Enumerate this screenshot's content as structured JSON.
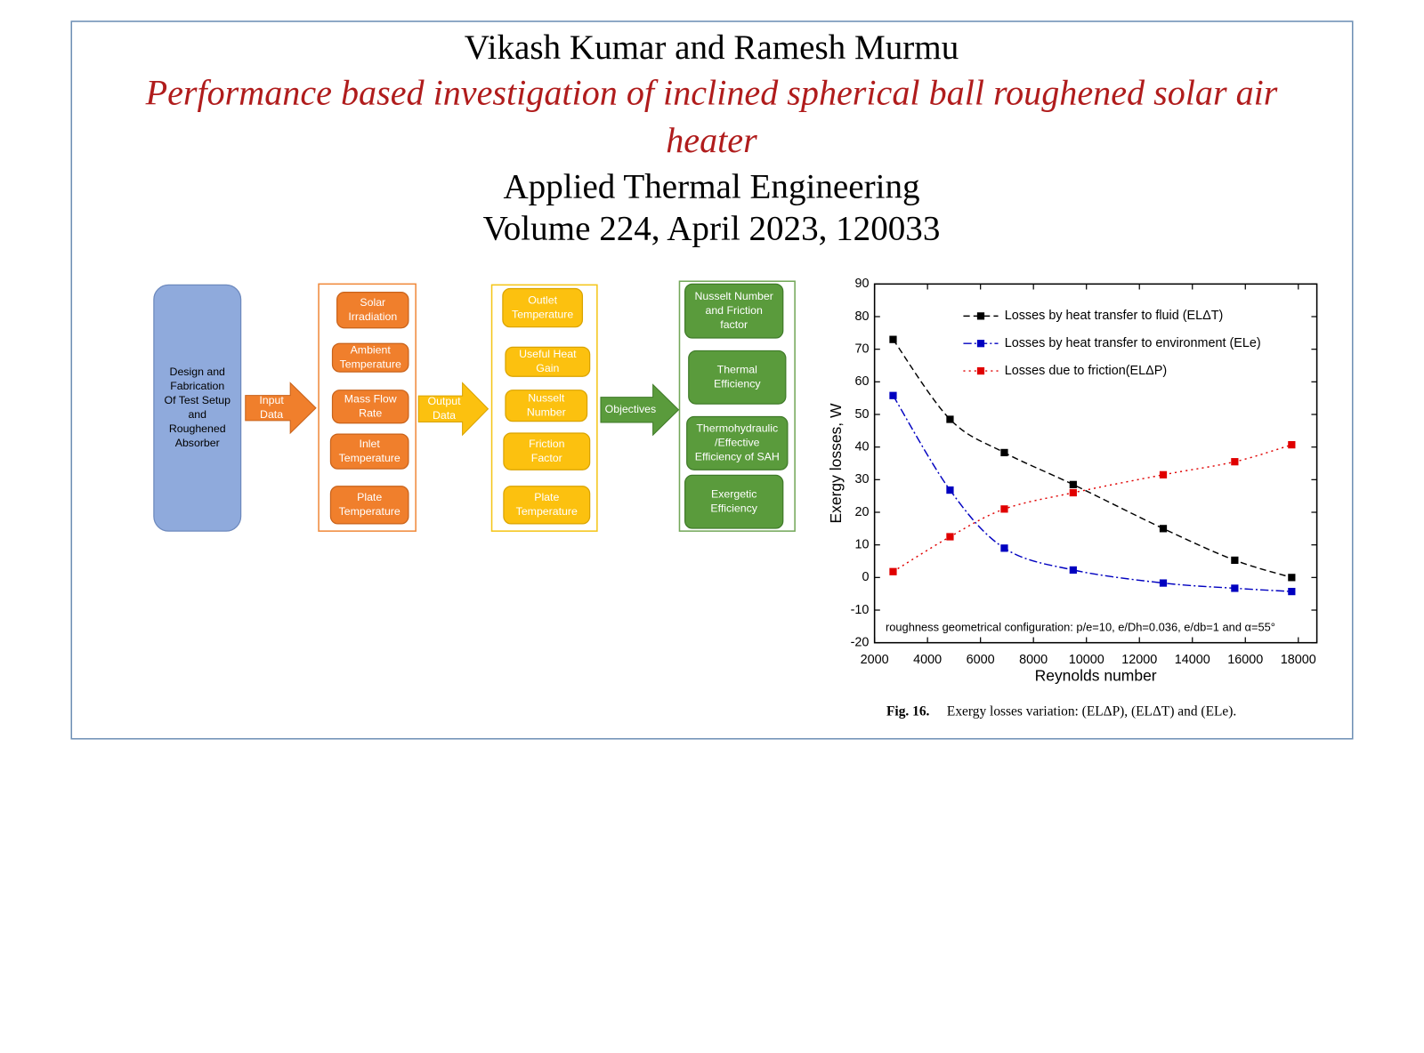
{
  "header": {
    "authors": "Vikash Kumar and Ramesh Murmu",
    "title_lines": [
      "Performance based investigation of inclined spherical ball roughened solar air",
      "heater"
    ],
    "journal": "Applied Thermal Engineering",
    "volume": "Volume 224, April 2023, 120033"
  },
  "diagram": {
    "nodes": [
      {
        "lines": [
          "Design and",
          "Fabrication",
          "Of Test Setup",
          "and",
          "Roughened",
          "Absorber"
        ]
      },
      {
        "lines": [
          "Input",
          "Data"
        ]
      },
      {
        "lines": [
          "Solar",
          "Irradiation"
        ]
      },
      {
        "lines": [
          "Ambient",
          "Temperature"
        ]
      },
      {
        "lines": [
          "Mass Flow",
          "Rate"
        ]
      },
      {
        "lines": [
          "Inlet",
          "Temperature"
        ]
      },
      {
        "lines": [
          "Plate",
          "Temperature"
        ]
      },
      {
        "lines": [
          "Output",
          "Data"
        ]
      },
      {
        "lines": [
          "Outlet",
          "Temperature"
        ]
      },
      {
        "lines": [
          "Useful Heat",
          "Gain"
        ]
      },
      {
        "lines": [
          "Nusselt",
          "Number"
        ]
      },
      {
        "lines": [
          "Friction",
          "Factor"
        ]
      },
      {
        "lines": [
          "Plate",
          "Temperature"
        ]
      },
      {
        "lines": [
          "Objectives"
        ]
      },
      {
        "lines": [
          "Nusselt Number",
          "and Friction",
          "factor"
        ]
      },
      {
        "lines": [
          "Thermal",
          "Efficiency"
        ]
      },
      {
        "lines": [
          "Thermohydraulic",
          "/Effective",
          "Efficiency of SAH"
        ]
      },
      {
        "lines": [
          "Exergetic",
          "Efficiency"
        ]
      }
    ]
  },
  "chart_data": {
    "type": "line",
    "x_label": "Reynolds number",
    "y_label": "Exergy losses, W",
    "annotation": "roughness geometrical configuration: p/e=10, e/Dh=0.036, e/db=1 and α=55°",
    "caption_label": "Fig. 16.",
    "caption_text": "Exergy losses variation: (ELΔP), (ELΔT) and (ELe).",
    "x": [
      2700,
      4850,
      6900,
      9500,
      12900,
      15600,
      17750
    ],
    "series": [
      {
        "name": "Losses by heat transfer to fluid (ELΔT)",
        "color": "#000000",
        "line_style": "dashed",
        "values": [
          73,
          48.5,
          38.3,
          28.5,
          15,
          5.3,
          0
        ]
      },
      {
        "name": "Losses by heat transfer to environment (ELe)",
        "color": "#0000c0",
        "line_style": "dash-dot",
        "values": [
          55.8,
          26.8,
          9,
          2.3,
          -1.7,
          -3.3,
          -4.3
        ]
      },
      {
        "name": "Losses due to friction(ELΔP)",
        "color": "#e00000",
        "line_style": "dotted",
        "values": [
          1.8,
          12.5,
          21,
          26,
          31.5,
          35.5,
          40.7
        ]
      }
    ],
    "xlim": [
      2000,
      18700
    ],
    "ylim": [
      -20,
      90
    ],
    "xticks": [
      2000,
      4000,
      6000,
      8000,
      10000,
      12000,
      14000,
      16000,
      18000
    ],
    "yticks": [
      -20,
      -10,
      0,
      10,
      20,
      30,
      40,
      50,
      60,
      70,
      80,
      90
    ]
  }
}
